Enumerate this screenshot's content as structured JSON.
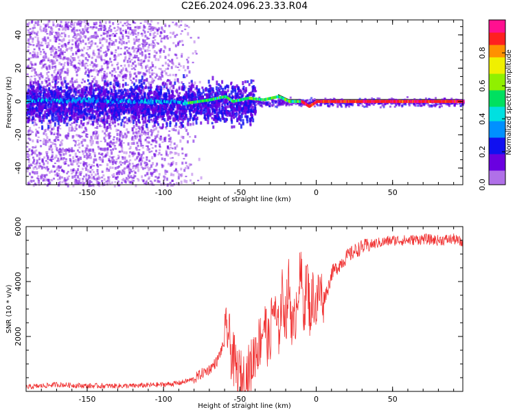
{
  "title": "C2E6.2024.096.23.33.R04",
  "chart_data": [
    {
      "type": "heatmap",
      "xlabel": "Height of straight line (km)",
      "ylabel": "Frequency (Hz)",
      "xlim": [
        -190,
        96
      ],
      "ylim": [
        -50,
        49
      ],
      "xticks": [
        -150,
        -100,
        -50,
        0,
        50
      ],
      "xtick_labels": [
        "-150",
        "-100",
        "-50",
        "0",
        "50"
      ],
      "yticks": [
        -40,
        -20,
        0,
        20,
        40
      ],
      "ytick_labels": [
        "-40",
        "-20",
        "0",
        "20",
        "40"
      ],
      "colorbar": {
        "label": "Normalized spectral amplitude",
        "range": [
          0,
          1
        ],
        "ticks": [
          0.0,
          0.2,
          0.4,
          0.6,
          0.8
        ],
        "tick_labels": [
          "0.0",
          "0.2",
          "0.4",
          "0.6",
          "0.8"
        ]
      },
      "ridge": {
        "x": [
          -190,
          -160,
          -120,
          -100,
          -85,
          -70,
          -60,
          -55,
          -45,
          -35,
          -25,
          -18,
          -10,
          -5,
          0,
          20,
          50,
          96
        ],
        "y": [
          0,
          1,
          0,
          0,
          -1,
          1,
          3,
          0,
          2,
          1,
          3,
          0,
          0,
          -3,
          0,
          0,
          0,
          0
        ]
      },
      "grid": false
    },
    {
      "type": "line",
      "xlabel": "Height of straight line (km)",
      "ylabel": "SNR (10 * v/v)",
      "xlim": [
        -190,
        96
      ],
      "ylim": [
        0,
        6000
      ],
      "xticks": [
        -150,
        -100,
        -50,
        0,
        50
      ],
      "xtick_labels": [
        "-150",
        "-100",
        "-50",
        "0",
        "50"
      ],
      "yticks": [
        2000,
        4000,
        6000
      ],
      "ytick_labels": [
        "2000",
        "4000",
        "6000"
      ],
      "color": "#f03030",
      "series": [
        {
          "x": [
            -190,
            -170,
            -150,
            -120,
            -100,
            -90,
            -80,
            -75,
            -70,
            -65,
            -60,
            -58,
            -56,
            -52,
            -48,
            -45,
            -42,
            -40,
            -37,
            -34,
            -31,
            -28,
            -25,
            -22,
            -20,
            -18,
            -15,
            -12,
            -10,
            -8,
            -6,
            -4,
            -2,
            0,
            2,
            5,
            8,
            10,
            15,
            20,
            25,
            30,
            40,
            50,
            60,
            70,
            80,
            90,
            96
          ],
          "y": [
            150,
            250,
            200,
            200,
            250,
            300,
            450,
            650,
            800,
            1100,
            1800,
            2300,
            1500,
            700,
            400,
            600,
            1000,
            1500,
            1800,
            2600,
            1600,
            3200,
            2000,
            3600,
            2600,
            3900,
            2000,
            3800,
            4200,
            3000,
            4200,
            2800,
            3600,
            3000,
            3700,
            3400,
            3800,
            4300,
            4600,
            4900,
            5100,
            5250,
            5400,
            5500,
            5500,
            5550,
            5500,
            5550,
            5400
          ]
        }
      ],
      "grid": false
    }
  ]
}
